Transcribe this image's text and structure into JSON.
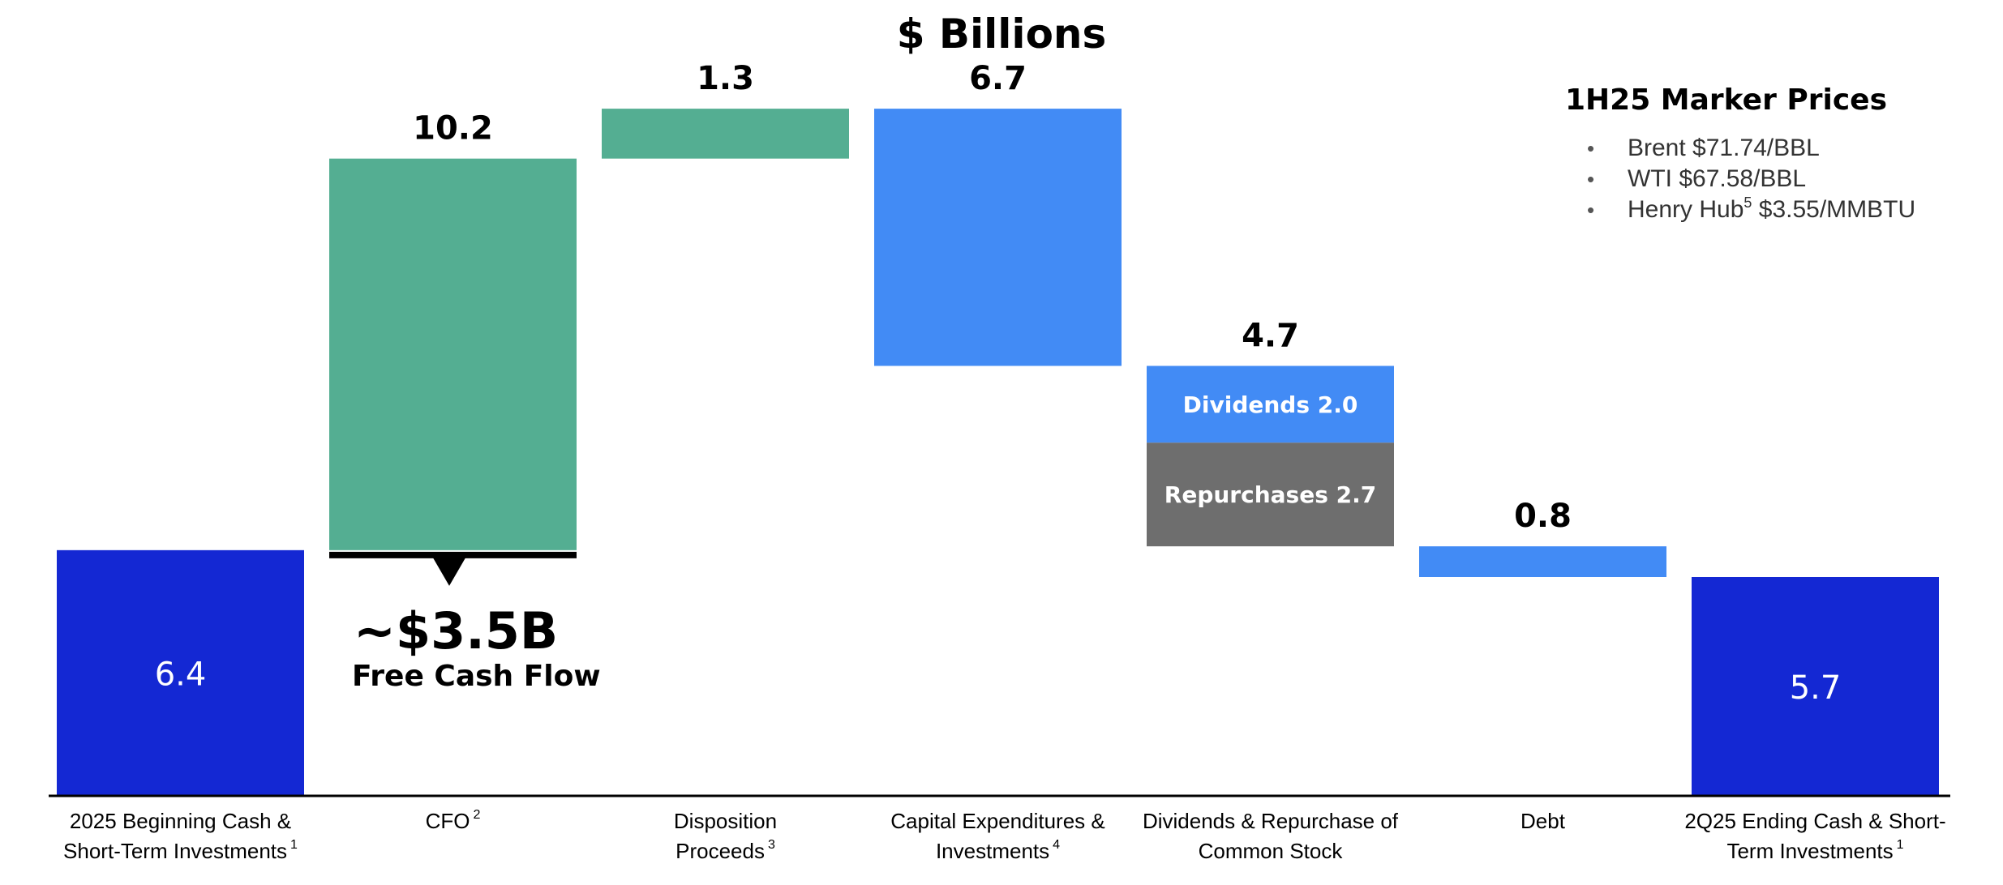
{
  "chart_data": {
    "type": "waterfall",
    "title": "$ Billions",
    "unit": "$ Billions",
    "bars": [
      {
        "id": "beginning",
        "label_lines": [
          "2025 Beginning Cash &",
          "Short-Term Investments"
        ],
        "footnote": "1",
        "value": 6.4,
        "value_label": "6.4",
        "kind": "total",
        "color": "#1428d3"
      },
      {
        "id": "cfo",
        "label_lines": [
          "CFO"
        ],
        "footnote": "2",
        "value": 10.2,
        "value_label": "10.2",
        "kind": "increase",
        "color": "#54ae92"
      },
      {
        "id": "disposition",
        "label_lines": [
          "Disposition",
          "Proceeds"
        ],
        "footnote": "3",
        "value": 1.3,
        "value_label": "1.3",
        "kind": "increase",
        "color": "#54ae92"
      },
      {
        "id": "capex",
        "label_lines": [
          "Capital Expenditures &",
          "Investments"
        ],
        "footnote": "4",
        "value": -6.7,
        "value_label": "6.7",
        "kind": "decrease",
        "color": "#428bf5"
      },
      {
        "id": "shareholder",
        "label_lines": [
          "Dividends & Repurchase of",
          "Common Stock"
        ],
        "footnote": "",
        "value": -4.7,
        "value_label": "4.7",
        "kind": "decrease",
        "segments": [
          {
            "name": "Dividends",
            "value": 2.0,
            "text": "Dividends 2.0",
            "color": "#428bf5"
          },
          {
            "name": "Repurchases",
            "value": 2.7,
            "text": "Repurchases 2.7",
            "color": "#6e6e6e"
          }
        ]
      },
      {
        "id": "debt",
        "label_lines": [
          "Debt"
        ],
        "footnote": "",
        "value": -0.8,
        "value_label": "0.8",
        "kind": "decrease",
        "color": "#428bf5"
      },
      {
        "id": "ending",
        "label_lines": [
          "2Q25 Ending Cash & Short-",
          "Term Investments"
        ],
        "footnote": "1",
        "value": 5.7,
        "value_label": "5.7",
        "kind": "total",
        "color": "#1428d3"
      }
    ],
    "annotation": {
      "value": "~$3.5B",
      "text": "Free Cash Flow",
      "level": 10.2
    },
    "ylim": [
      0,
      19
    ]
  },
  "marker_prices": {
    "title": "1H25 Marker Prices",
    "items": [
      {
        "name": "Brent",
        "sup": "",
        "value": "$71.74/BBL"
      },
      {
        "name": "WTI",
        "sup": "",
        "value": "$67.58/BBL"
      },
      {
        "name": "Henry Hub",
        "sup": "5",
        "value": "$3.55/MMBTU"
      }
    ]
  },
  "colors": {
    "axis": "#000000",
    "text": "#000000",
    "light_text": "#555555",
    "fcf_marker": "#000000"
  }
}
